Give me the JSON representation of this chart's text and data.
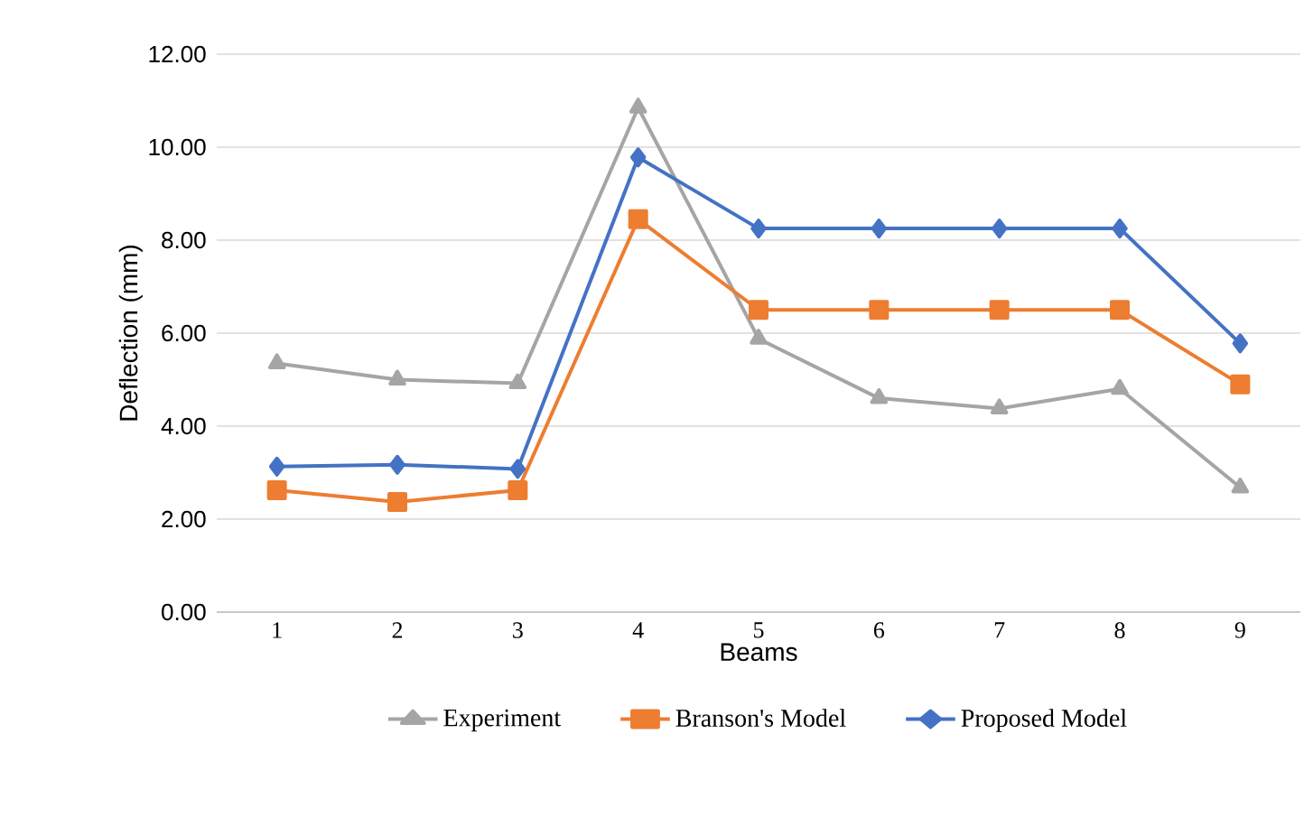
{
  "chart_data": {
    "type": "line",
    "xlabel": "Beams",
    "ylabel": "Deflection (mm)",
    "categories": [
      "1",
      "2",
      "3",
      "4",
      "5",
      "6",
      "7",
      "8",
      "9"
    ],
    "series": [
      {
        "name": "Experiment",
        "color": "#a5a5a5",
        "marker": "triangle",
        "values": [
          5.35,
          5.0,
          4.92,
          10.85,
          5.88,
          4.6,
          4.38,
          4.8,
          2.68
        ]
      },
      {
        "name": "Branson's Model",
        "color": "#ed7d31",
        "marker": "square",
        "values": [
          2.62,
          2.37,
          2.62,
          8.45,
          6.5,
          6.5,
          6.5,
          6.5,
          4.9
        ]
      },
      {
        "name": "Proposed Model",
        "color": "#4472c4",
        "marker": "diamond",
        "values": [
          3.13,
          3.17,
          3.08,
          9.78,
          8.25,
          8.25,
          8.25,
          8.25,
          5.78
        ]
      }
    ],
    "ylim": [
      0,
      12
    ],
    "yticks": [
      {
        "value": 0,
        "label": "0.00"
      },
      {
        "value": 2,
        "label": "2.00"
      },
      {
        "value": 4,
        "label": "4.00"
      },
      {
        "value": 6,
        "label": "6.00"
      },
      {
        "value": 8,
        "label": "8.00"
      },
      {
        "value": 10,
        "label": "10.00"
      },
      {
        "value": 12,
        "label": "12.00"
      }
    ],
    "grid": "y",
    "legend": "bottom",
    "line_style": "solid"
  }
}
